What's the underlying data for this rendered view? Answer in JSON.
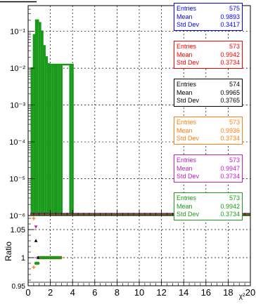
{
  "chart_data": [
    {
      "panel": "main",
      "type": "histogram",
      "xlim": [
        0,
        20
      ],
      "yscale": "log",
      "ylim": [
        1e-06,
        0.5
      ],
      "y_tick_labels": [
        "10⁻⁶",
        "10⁻⁵",
        "10⁻⁴",
        "10⁻³",
        "10⁻²",
        "10⁻¹"
      ],
      "grid": true,
      "series": [
        {
          "color": "#1a9a1a",
          "bins": [
            {
              "x0": 0.3,
              "x1": 0.5,
              "y": 0.01
            },
            {
              "x0": 0.5,
              "x1": 0.7,
              "y": 0.08
            },
            {
              "x0": 0.7,
              "x1": 0.9,
              "y": 0.2
            },
            {
              "x0": 0.9,
              "x1": 1.1,
              "y": 0.17
            },
            {
              "x0": 1.1,
              "x1": 1.3,
              "y": 0.1
            },
            {
              "x0": 1.3,
              "x1": 1.5,
              "y": 0.04
            },
            {
              "x0": 1.5,
              "x1": 1.7,
              "y": 0.02
            },
            {
              "x0": 1.7,
              "x1": 1.9,
              "y": 0.013
            },
            {
              "x0": 1.9,
              "x1": 2.1,
              "y": 0.0125
            },
            {
              "x0": 2.1,
              "x1": 2.3,
              "y": 0.0125
            },
            {
              "x0": 2.3,
              "x1": 2.5,
              "y": 0.0125
            },
            {
              "x0": 2.5,
              "x1": 2.7,
              "y": 0.0125
            },
            {
              "x0": 2.7,
              "x1": 2.9,
              "y": 0.0125
            },
            {
              "x0": 2.9,
              "x1": 3.1,
              "y": 0.0125
            },
            {
              "x0": 3.7,
              "x1": 3.9,
              "y": 0.0125
            },
            {
              "x0": 3.9,
              "x1": 4.1,
              "y": 0.0125
            }
          ]
        }
      ]
    },
    {
      "panel": "ratio",
      "type": "scatter",
      "xlim": [
        0,
        20
      ],
      "ylim": [
        0.95,
        1.075
      ],
      "ylabel": "Ratio",
      "xlabel": "χ²",
      "x_tick_labels": [
        "0",
        "2",
        "4",
        "6",
        "8",
        "10",
        "12",
        "14",
        "16",
        "18",
        "20"
      ],
      "y_tick_labels": [
        "0.95",
        "1",
        "1.05"
      ],
      "grid": true,
      "series": [
        {
          "color": "#ff7f0e",
          "marker": "cross",
          "points": [
            [
              0.5,
              1.07
            ],
            [
              0.5,
              0.983
            ],
            [
              0.8,
              0.99
            ],
            [
              1.0,
              1.0
            ],
            [
              1.2,
              1.0
            ],
            [
              1.4,
              1.0
            ],
            [
              1.6,
              1.0
            ],
            [
              1.8,
              1.0
            ],
            [
              2.0,
              1.0
            ],
            [
              2.2,
              1.0
            ],
            [
              2.4,
              1.0
            ],
            [
              2.6,
              1.0
            ],
            [
              2.8,
              1.0
            ],
            [
              3.0,
              1.0
            ]
          ]
        },
        {
          "color": "#c020c0",
          "marker": "triangle-down",
          "points": [
            [
              0.7,
              1.055
            ],
            [
              0.9,
              1.0
            ],
            [
              1.1,
              1.0
            ],
            [
              1.3,
              1.0
            ],
            [
              1.5,
              1.0
            ],
            [
              1.7,
              1.0
            ],
            [
              1.9,
              1.0
            ],
            [
              2.1,
              1.0
            ],
            [
              2.3,
              1.0
            ],
            [
              2.5,
              1.0
            ],
            [
              2.7,
              1.0
            ],
            [
              2.9,
              1.0
            ]
          ]
        },
        {
          "color": "#000000",
          "marker": "triangle-up",
          "points": [
            [
              0.7,
              1.03
            ],
            [
              0.9,
              1.0
            ],
            [
              1.1,
              1.0
            ],
            [
              1.3,
              1.0
            ],
            [
              1.5,
              1.0
            ],
            [
              1.7,
              1.0
            ],
            [
              1.9,
              1.0
            ],
            [
              2.1,
              1.0
            ],
            [
              2.3,
              1.0
            ],
            [
              2.5,
              1.0
            ],
            [
              2.7,
              1.0
            ]
          ]
        },
        {
          "color": "#1a9a1a",
          "marker": "circle",
          "points": [
            [
              0.7,
              0.99
            ],
            [
              0.9,
              0.99
            ],
            [
              1.1,
              1.0
            ],
            [
              1.3,
              1.0
            ],
            [
              1.5,
              1.0
            ],
            [
              1.7,
              1.0
            ],
            [
              1.9,
              1.0
            ],
            [
              2.1,
              1.0
            ],
            [
              2.3,
              1.0
            ],
            [
              2.5,
              1.0
            ],
            [
              2.7,
              1.0
            ],
            [
              2.9,
              1.0
            ]
          ]
        }
      ]
    }
  ],
  "stat_boxes": [
    {
      "color": "#0000ff",
      "entries_label": "Entries",
      "entries": "575",
      "mean_label": "Mean",
      "mean": "0.9893",
      "std_label": "Std Dev",
      "std": "0.3417"
    },
    {
      "color": "#ff0000",
      "entries_label": "Entries",
      "entries": "573",
      "mean_label": "Mean",
      "mean": "0.9942",
      "std_label": "Std Dev",
      "std": "0.3734"
    },
    {
      "color": "#000000",
      "entries_label": "Entries",
      "entries": "574",
      "mean_label": "Mean",
      "mean": "0.9965",
      "std_label": "Std Dev",
      "std": "0.3765"
    },
    {
      "color": "#ff7f0e",
      "entries_label": "Entries",
      "entries": "573",
      "mean_label": "Mean",
      "mean": "0.9936",
      "std_label": "Std Dev",
      "std": "0.3734"
    },
    {
      "color": "#c020c0",
      "entries_label": "Entries",
      "entries": "573",
      "mean_label": "Mean",
      "mean": "0.9947",
      "std_label": "Std Dev",
      "std": "0.3734"
    },
    {
      "color": "#1a9a1a",
      "entries_label": "Entries",
      "entries": "573",
      "mean_label": "Mean",
      "mean": "0.9942",
      "std_label": "Std Dev",
      "std": "0.3734"
    }
  ]
}
